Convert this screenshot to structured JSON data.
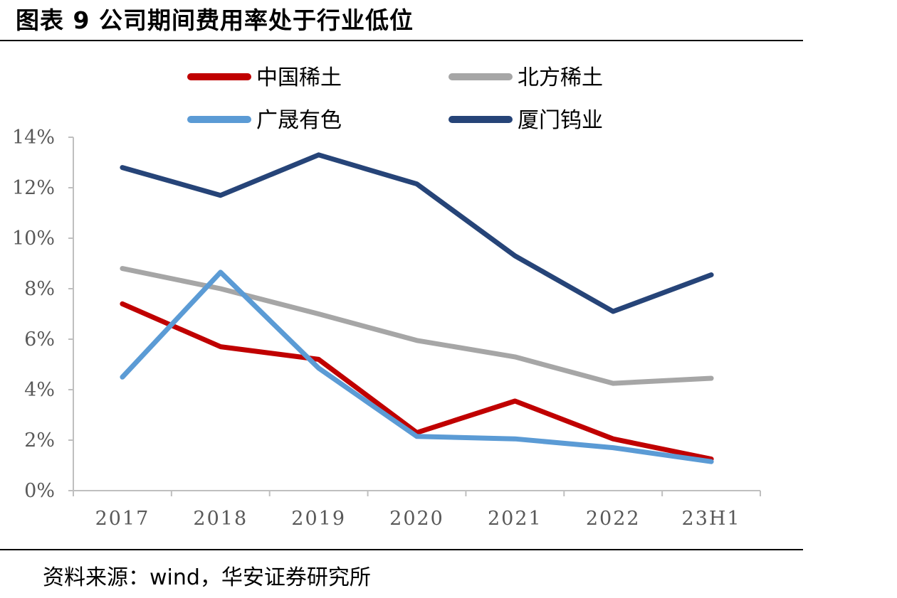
{
  "header": {
    "title": "图表 9 公司期间费用率处于行业低位"
  },
  "footer": {
    "source": "资料来源：wind，华安证券研究所"
  },
  "chart_data": {
    "type": "line",
    "categories": [
      "2017",
      "2018",
      "2019",
      "2020",
      "2021",
      "2022",
      "23H1"
    ],
    "series": [
      {
        "name": "中国稀土",
        "color": "#C00000",
        "values": [
          7.4,
          5.7,
          5.2,
          2.3,
          3.55,
          2.05,
          1.25
        ]
      },
      {
        "name": "北方稀土",
        "color": "#A6A6A6",
        "values": [
          8.8,
          8.0,
          7.0,
          5.95,
          5.3,
          4.25,
          4.45
        ]
      },
      {
        "name": "广晟有色",
        "color": "#5B9BD5",
        "values": [
          4.5,
          8.65,
          4.85,
          2.15,
          2.05,
          1.7,
          1.15
        ]
      },
      {
        "name": "厦门钨业",
        "color": "#264478",
        "values": [
          12.8,
          11.7,
          13.3,
          12.15,
          9.3,
          7.1,
          8.55
        ]
      }
    ],
    "yticks": [
      "0%",
      "2%",
      "4%",
      "6%",
      "8%",
      "10%",
      "12%",
      "14%"
    ],
    "ylim": [
      0,
      14
    ],
    "grid": false,
    "legend_position": "top"
  }
}
